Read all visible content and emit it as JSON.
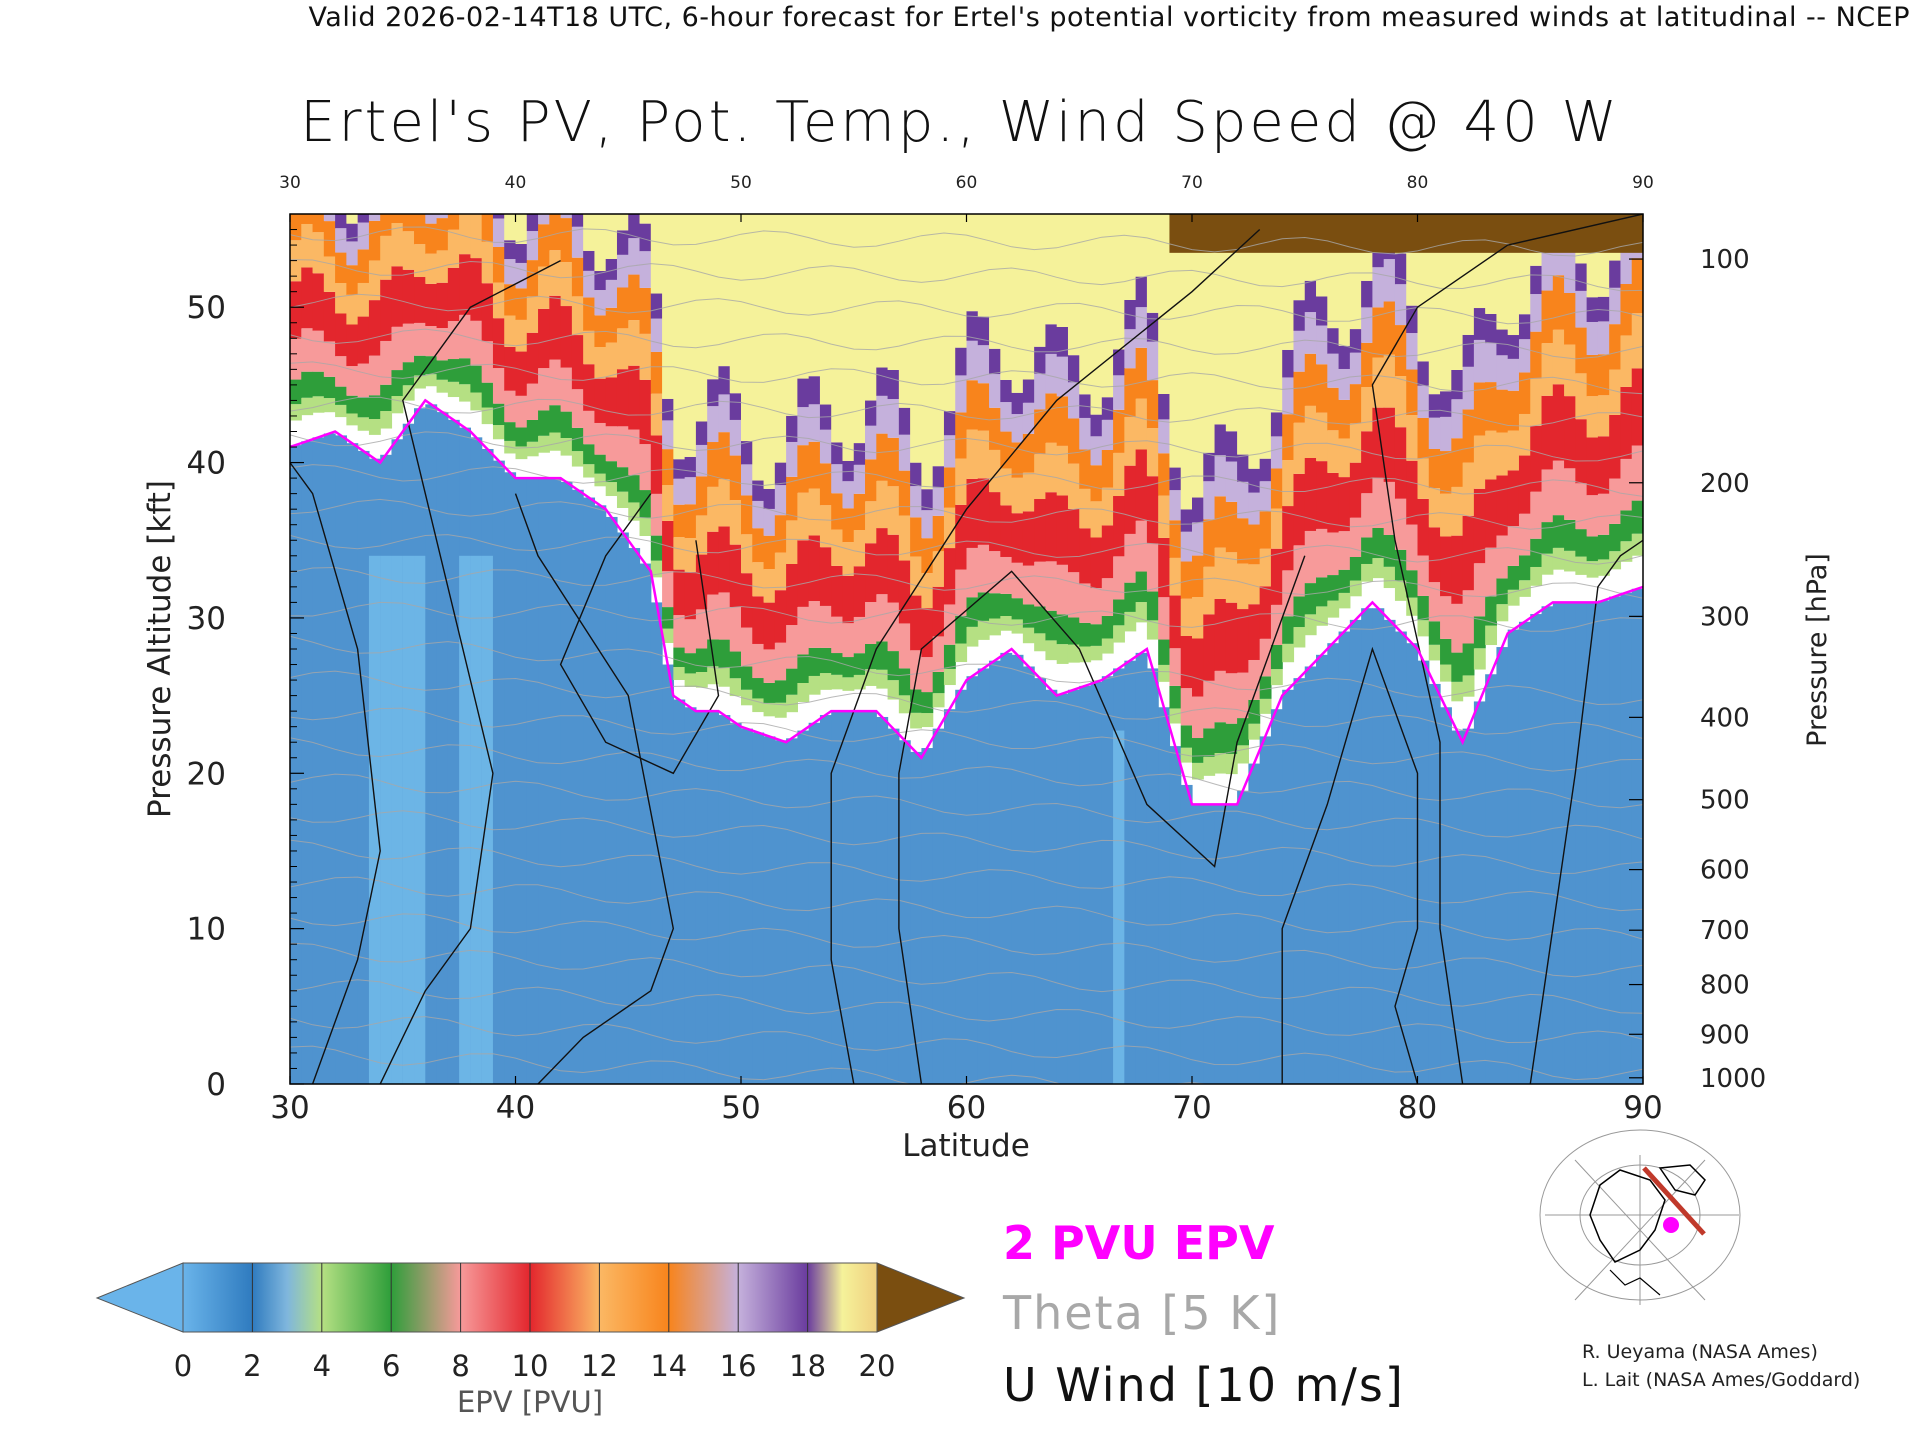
{
  "header": "Valid 2026-02-14T18 UTC, 6-hour forecast for Ertel's potential vorticity from measured winds at latitudinal -- NCEP",
  "chart_data": {
    "type": "heatmap",
    "title": "Ertel's PV, Pot. Temp., Wind Speed @ 40 W",
    "xlabel": "Latitude",
    "ylabel": "Pressure Altitude [kft]",
    "y2label": "Pressure [hPa]",
    "xlim": [
      30,
      90
    ],
    "ylim": [
      0,
      56
    ],
    "x_ticks": [
      "30",
      "40",
      "50",
      "60",
      "70",
      "80",
      "90"
    ],
    "x_top_ticks": [
      "30",
      "40",
      "50",
      "60",
      "70",
      "80",
      "90"
    ],
    "y_ticks": [
      "0",
      "10",
      "20",
      "30",
      "40",
      "50"
    ],
    "pressure_ticks": [
      {
        "label": "100",
        "kft": 53.1
      },
      {
        "label": "200",
        "kft": 38.7
      },
      {
        "label": "300",
        "kft": 30.1
      },
      {
        "label": "400",
        "kft": 23.6
      },
      {
        "label": "500",
        "kft": 18.3
      },
      {
        "label": "600",
        "kft": 13.8
      },
      {
        "label": "700",
        "kft": 9.9
      },
      {
        "label": "800",
        "kft": 6.4
      },
      {
        "label": "900",
        "kft": 3.2
      },
      {
        "label": "1000",
        "kft": 0.4
      }
    ],
    "grid": false,
    "tropopause_2pvu_kft": {
      "lat": [
        30,
        32,
        34,
        36,
        38,
        40,
        42,
        44,
        45,
        46,
        47,
        48,
        49,
        50,
        52,
        54,
        56,
        58,
        60,
        62,
        64,
        66,
        68,
        70,
        72,
        74,
        76,
        78,
        80,
        82,
        84,
        86,
        88,
        90
      ],
      "kft": [
        41,
        42,
        40,
        44,
        42,
        39,
        39,
        37,
        35,
        33,
        25,
        24,
        24,
        23,
        22,
        24,
        24,
        21,
        26,
        28,
        25,
        26,
        28,
        18,
        18,
        25,
        28,
        31,
        28,
        22,
        29,
        31,
        31,
        32
      ]
    },
    "colorbar": {
      "label": "EPV [PVU]",
      "ticks": [
        "0",
        "2",
        "4",
        "6",
        "8",
        "10",
        "12",
        "14",
        "16",
        "18",
        "20"
      ],
      "colors": [
        "#6ab4ea",
        "#2f7bbf",
        "#b5e083",
        "#2e9e3a",
        "#f79a9a",
        "#e3262d",
        "#fbb864",
        "#f8841c",
        "#c5b1dc",
        "#6a3c9e",
        "#f5f29a",
        "#7a4e10"
      ]
    },
    "legend": [
      {
        "label": "2 PVU EPV",
        "color": "#ff00ff"
      },
      {
        "label": "Theta [5 K]",
        "color": "#a8a8a8"
      },
      {
        "label": "U Wind [10 m/s]",
        "color": "#111111"
      }
    ]
  },
  "credits": [
    "R. Ueyama (NASA Ames)",
    "L. Lait (NASA Ames/Goddard)"
  ]
}
